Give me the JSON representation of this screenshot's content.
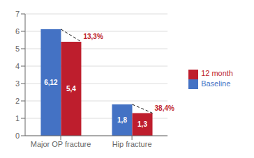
{
  "chart_data": {
    "type": "bar",
    "categories": [
      "Major OP fracture",
      "Hip fracture"
    ],
    "series": [
      {
        "name": "Baseline",
        "color": "#4472C4",
        "values": [
          6.12,
          1.8
        ],
        "value_labels": [
          "6,12",
          "1,8"
        ]
      },
      {
        "name": "12 month",
        "color": "#BE1E2D",
        "values": [
          5.4,
          1.3
        ],
        "value_labels": [
          "5,4",
          "1,3"
        ]
      }
    ],
    "data_labels": true,
    "annotations": [
      {
        "category": "Major OP fracture",
        "text": "13,3%",
        "color": "#BE1E2D"
      },
      {
        "category": "Hip fracture",
        "text": "38,4%",
        "color": "#BE1E2D"
      }
    ],
    "ylim": [
      0,
      7
    ],
    "yticks": [
      0,
      1,
      2,
      3,
      4,
      5,
      6,
      7
    ],
    "grid": true,
    "legend": "right"
  }
}
